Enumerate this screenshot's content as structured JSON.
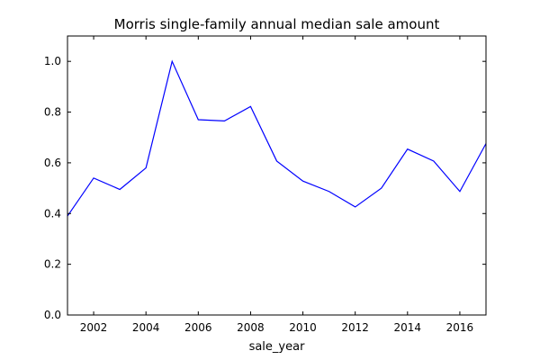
{
  "chart_data": {
    "type": "line",
    "title": "Morris single-family annual median sale amount",
    "xlabel": "sale_year",
    "ylabel": "",
    "xlim": [
      2001,
      2017
    ],
    "ylim": [
      0.0,
      1.1
    ],
    "x_ticks": [
      2002,
      2004,
      2006,
      2008,
      2010,
      2012,
      2014,
      2016
    ],
    "x_tick_labels": [
      "2002",
      "2004",
      "2006",
      "2008",
      "2010",
      "2012",
      "2014",
      "2016"
    ],
    "y_ticks": [
      0.0,
      0.2,
      0.4,
      0.6,
      0.8,
      1.0
    ],
    "y_tick_labels": [
      "0.0",
      "0.2",
      "0.4",
      "0.6",
      "0.8",
      "1.0"
    ],
    "grid": false,
    "series": [
      {
        "color": "#0000ff",
        "x": [
          2001,
          2002,
          2003,
          2004,
          2005,
          2006,
          2007,
          2008,
          2009,
          2010,
          2011,
          2012,
          2013,
          2014,
          2015,
          2016,
          2017
        ],
        "y": [
          0.39,
          0.54,
          0.495,
          0.58,
          1.0,
          0.77,
          0.765,
          0.822,
          0.607,
          0.528,
          0.487,
          0.426,
          0.5,
          0.654,
          0.607,
          0.487,
          0.676
        ]
      }
    ]
  }
}
